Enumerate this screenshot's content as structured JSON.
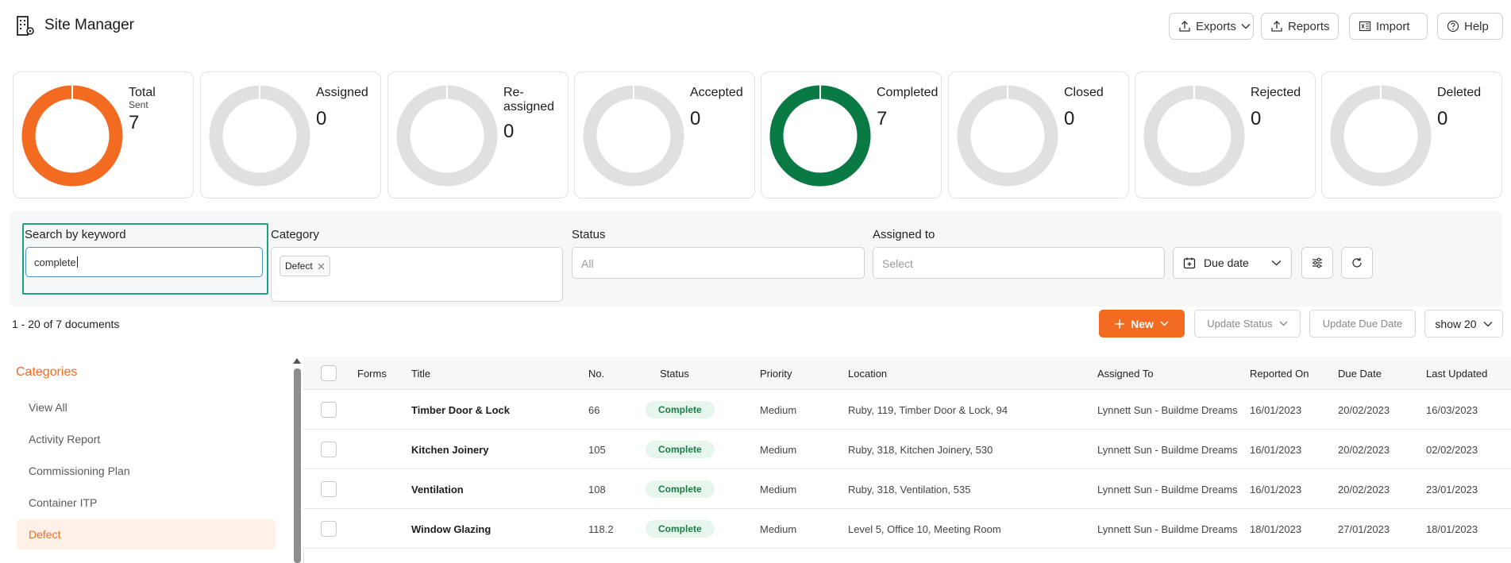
{
  "app": {
    "title": "Site Manager"
  },
  "header": {
    "buttons": {
      "exports": "Exports",
      "reports": "Reports",
      "import": "Import",
      "help": "Help"
    }
  },
  "stats": [
    {
      "label": "Total",
      "sub": "Sent",
      "value": "7",
      "fraction": 1.0,
      "color": "#f26b21"
    },
    {
      "label": "Assigned",
      "value": "0",
      "fraction": 0
    },
    {
      "label": "Re-assigned",
      "value": "0",
      "fraction": 0
    },
    {
      "label": "Accepted",
      "value": "0",
      "fraction": 0
    },
    {
      "label": "Completed",
      "value": "7",
      "fraction": 1.0,
      "color": "#0a7a45"
    },
    {
      "label": "Closed",
      "value": "0",
      "fraction": 0
    },
    {
      "label": "Rejected",
      "value": "0",
      "fraction": 0
    },
    {
      "label": "Deleted",
      "value": "0",
      "fraction": 0
    }
  ],
  "filters": {
    "keyword": {
      "label": "Search by keyword",
      "value": "complete"
    },
    "category": {
      "label": "Category",
      "tag": "Defect"
    },
    "status": {
      "label": "Status",
      "placeholder": "All"
    },
    "assigned_to": {
      "label": "Assigned to",
      "placeholder": "Select"
    },
    "due_date": {
      "label": "Due date"
    }
  },
  "results": {
    "count_text": "1 - 20 of 7 documents"
  },
  "actions": {
    "new": "New",
    "update_status": "Update Status",
    "update_due_date": "Update Due Date",
    "show": "show 20"
  },
  "sidebar": {
    "title": "Categories",
    "items": [
      {
        "label": "View All"
      },
      {
        "label": "Activity Report"
      },
      {
        "label": "Commissioning Plan"
      },
      {
        "label": "Container ITP"
      },
      {
        "label": "Defect",
        "active": true
      }
    ]
  },
  "table": {
    "columns": [
      "Forms",
      "Title",
      "No.",
      "Status",
      "Priority",
      "Location",
      "Assigned To",
      "Reported On",
      "Due Date",
      "Last Updated"
    ],
    "rows": [
      {
        "title": "Timber Door & Lock",
        "no": "66",
        "status": "Complete",
        "priority": "Medium",
        "location": "Ruby, 119, Timber Door & Lock, 94",
        "assigned_to": "Lynnett Sun - Buildme Dreams",
        "reported_on": "16/01/2023",
        "due_date": "20/02/2023",
        "last_updated": "16/03/2023"
      },
      {
        "title": "Kitchen Joinery",
        "no": "105",
        "status": "Complete",
        "priority": "Medium",
        "location": "Ruby, 318, Kitchen Joinery, 530",
        "assigned_to": "Lynnett Sun - Buildme Dreams",
        "reported_on": "16/01/2023",
        "due_date": "20/02/2023",
        "last_updated": "02/02/2023"
      },
      {
        "title": "Ventilation",
        "no": "108",
        "status": "Complete",
        "priority": "Medium",
        "location": "Ruby, 318, Ventilation, 535",
        "assigned_to": "Lynnett Sun - Buildme Dreams",
        "reported_on": "16/01/2023",
        "due_date": "20/02/2023",
        "last_updated": "23/01/2023"
      },
      {
        "title": "Window Glazing",
        "no": "118.2",
        "status": "Complete",
        "priority": "Medium",
        "location": "Level 5, Office 10, Meeting Room",
        "assigned_to": "Lynnett Sun - Buildme Dreams",
        "reported_on": "18/01/2023",
        "due_date": "27/01/2023",
        "last_updated": "18/01/2023"
      }
    ]
  }
}
